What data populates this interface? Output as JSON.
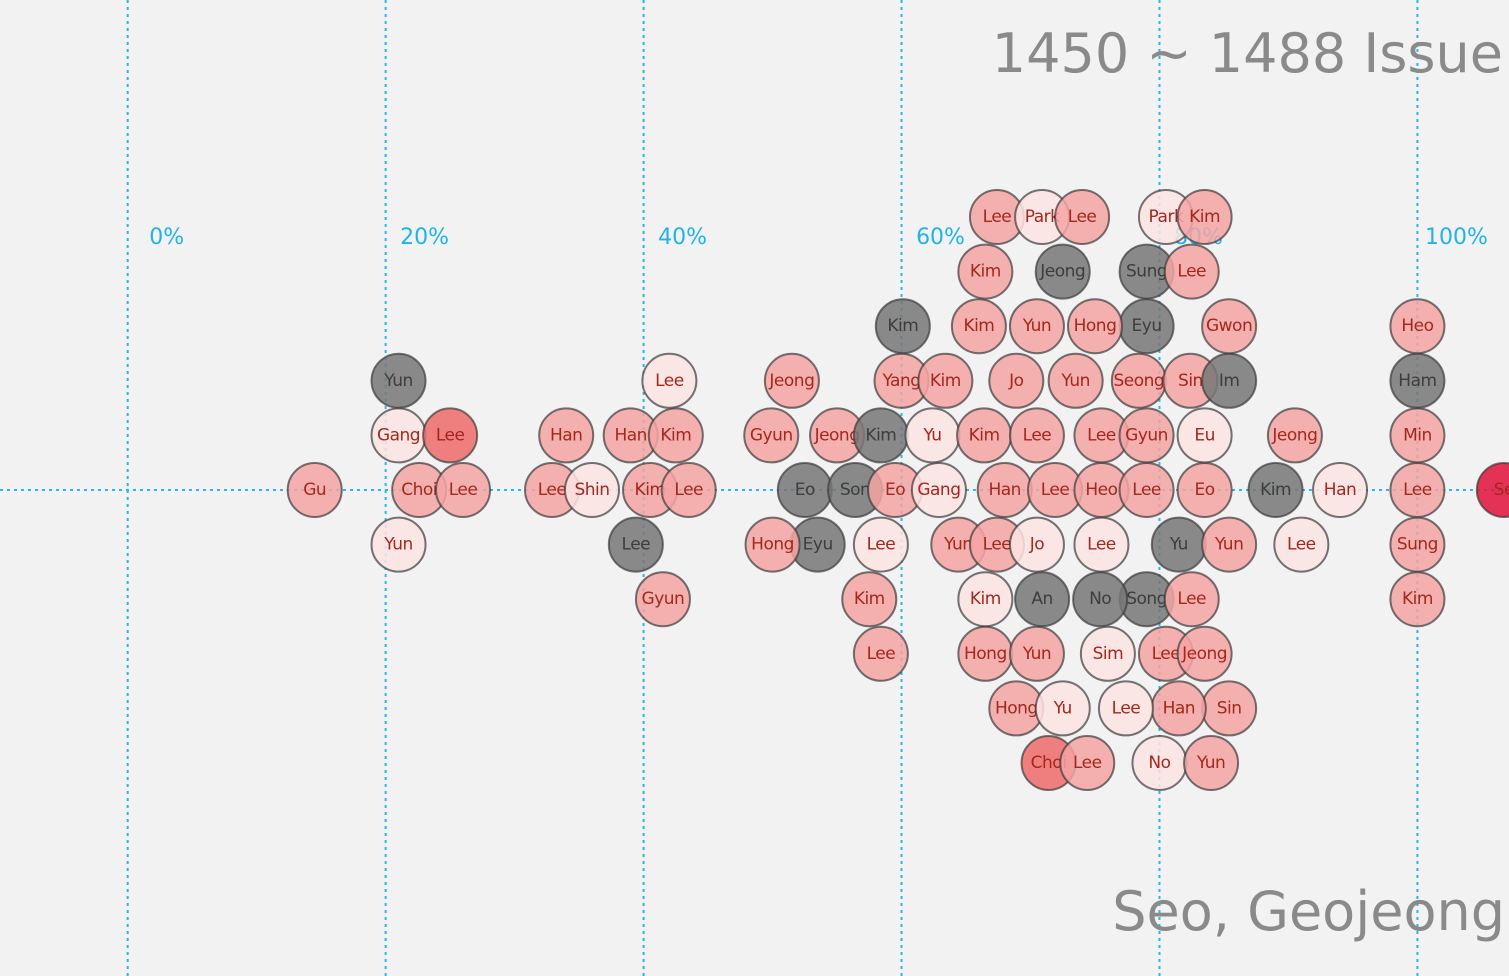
{
  "chart_data": {
    "type": "beeswarm",
    "title": "1450 ~ 1488 Issue",
    "subtitle": "Seo, Geojeong",
    "xlim": [
      -9.9,
      107.1
    ],
    "xticks": [
      {
        "value": 0,
        "label": "0%"
      },
      {
        "value": 20,
        "label": "20%"
      },
      {
        "value": 40,
        "label": "40%"
      },
      {
        "value": 60,
        "label": "60%"
      },
      {
        "value": 80,
        "label": "80%"
      },
      {
        "value": 100,
        "label": "100%"
      }
    ],
    "grid": true,
    "points": [
      {
        "label": "Gu",
        "value": 14.5,
        "color": "#f4a3a3"
      },
      {
        "label": "Choi",
        "value": 22.6,
        "color": "#f4a3a3"
      },
      {
        "label": "Lee",
        "value": 26.0,
        "color": "#f4a3a3"
      },
      {
        "label": "Lee",
        "value": 32.9,
        "color": "#f4a3a3"
      },
      {
        "label": "Shin",
        "value": 36.0,
        "color": "#fde4e4"
      },
      {
        "label": "Kim",
        "value": 40.5,
        "color": "#f4a3a3"
      },
      {
        "label": "Lee",
        "value": 43.5,
        "color": "#f4a3a3"
      },
      {
        "label": "Eo",
        "value": 52.5,
        "color": "#777777"
      },
      {
        "label": "Son",
        "value": 56.4,
        "color": "#777777"
      },
      {
        "label": "Eo",
        "value": 59.5,
        "color": "#f4a3a3"
      },
      {
        "label": "Gang",
        "value": 62.9,
        "color": "#fde4e4"
      },
      {
        "label": "Han",
        "value": 68.0,
        "color": "#f4a3a3"
      },
      {
        "label": "Lee",
        "value": 71.9,
        "color": "#f4a3a3"
      },
      {
        "label": "Heo",
        "value": 75.5,
        "color": "#f4a3a3"
      },
      {
        "label": "Lee",
        "value": 79.0,
        "color": "#f4a3a3"
      },
      {
        "label": "Eo",
        "value": 83.5,
        "color": "#f4a3a3"
      },
      {
        "label": "Kim",
        "value": 89.0,
        "color": "#777777"
      },
      {
        "label": "Han",
        "value": 94.0,
        "color": "#fde4e4"
      },
      {
        "label": "Lee",
        "value": 100,
        "color": "#f4a3a3"
      },
      {
        "label": "Se",
        "value": 106.7,
        "color": "#e0113a"
      },
      {
        "label": "Gang",
        "value": 21.0,
        "color": "#fde4e4"
      },
      {
        "label": "Lee",
        "value": 25.0,
        "color": "#ee6b6b"
      },
      {
        "label": "Han",
        "value": 34.0,
        "color": "#f4a3a3"
      },
      {
        "label": "Han",
        "value": 39.0,
        "color": "#f4a3a3"
      },
      {
        "label": "Jeong",
        "value": 55.0,
        "color": "#f4a3a3"
      },
      {
        "label": "Kim",
        "value": 58.4,
        "color": "#777777"
      },
      {
        "label": "Yu",
        "value": 62.4,
        "color": "#fde4e4"
      },
      {
        "label": "Kim",
        "value": 66.4,
        "color": "#f4a3a3"
      },
      {
        "label": "Lee",
        "value": 70.5,
        "color": "#f4a3a3"
      },
      {
        "label": "Lee",
        "value": 75.5,
        "color": "#f4a3a3"
      },
      {
        "label": "Gyun",
        "value": 79.0,
        "color": "#f4a3a3"
      },
      {
        "label": "Eu",
        "value": 83.5,
        "color": "#fde4e4"
      },
      {
        "label": "Jeong",
        "value": 90.5,
        "color": "#f4a3a3"
      },
      {
        "label": "Min",
        "value": 100,
        "color": "#f4a3a3"
      },
      {
        "label": "Yun",
        "value": 21.0,
        "color": "#fde4e4"
      },
      {
        "label": "Lee",
        "value": 39.4,
        "color": "#777777"
      },
      {
        "label": "Kim",
        "value": 42.5,
        "color": "#f4a3a3"
      },
      {
        "label": "Gyun",
        "value": 49.9,
        "color": "#f4a3a3"
      },
      {
        "label": "Eyu",
        "value": 53.5,
        "color": "#777777"
      },
      {
        "label": "Lee",
        "value": 58.4,
        "color": "#fde4e4"
      },
      {
        "label": "Yun",
        "value": 64.4,
        "color": "#f4a3a3"
      },
      {
        "label": "Lee",
        "value": 67.4,
        "color": "#f4a3a3"
      },
      {
        "label": "Jo",
        "value": 70.5,
        "color": "#fde4e4"
      },
      {
        "label": "Lee",
        "value": 75.5,
        "color": "#fde4e4"
      },
      {
        "label": "Seong",
        "value": 78.4,
        "color": "#f4a3a3"
      },
      {
        "label": "Yu",
        "value": 81.5,
        "color": "#777777"
      },
      {
        "label": "Yun",
        "value": 85.4,
        "color": "#f4a3a3"
      },
      {
        "label": "Lee",
        "value": 91.0,
        "color": "#fde4e4"
      },
      {
        "label": "Sung",
        "value": 100,
        "color": "#f4a3a3"
      },
      {
        "label": "Lee",
        "value": 42.0,
        "color": "#fde4e4"
      },
      {
        "label": "Jeong",
        "value": 51.5,
        "color": "#f4a3a3"
      },
      {
        "label": "Hong",
        "value": 50.0,
        "color": "#f4a3a3"
      },
      {
        "label": "Yang",
        "value": 60.0,
        "color": "#f4a3a3"
      },
      {
        "label": "Kim",
        "value": 63.4,
        "color": "#f4a3a3"
      },
      {
        "label": "Jo",
        "value": 68.9,
        "color": "#f4a3a3"
      },
      {
        "label": "An",
        "value": 70.9,
        "color": "#777777"
      },
      {
        "label": "Yun",
        "value": 73.5,
        "color": "#f4a3a3"
      },
      {
        "label": "Song",
        "value": 79.0,
        "color": "#777777"
      },
      {
        "label": "Sin",
        "value": 82.4,
        "color": "#f4a3a3"
      },
      {
        "label": "Im",
        "value": 85.4,
        "color": "#777777"
      },
      {
        "label": "Ham",
        "value": 100,
        "color": "#777777"
      },
      {
        "label": "Yun",
        "value": 21.0,
        "color": "#777777"
      },
      {
        "label": "Gyun",
        "value": 41.5,
        "color": "#f4a3a3"
      },
      {
        "label": "Kim",
        "value": 57.5,
        "color": "#f4a3a3"
      },
      {
        "label": "Kim",
        "value": 60.1,
        "color": "#777777"
      },
      {
        "label": "Kim",
        "value": 66.5,
        "color": "#fde4e4"
      },
      {
        "label": "Yun",
        "value": 70.5,
        "color": "#f4a3a3"
      },
      {
        "label": "No",
        "value": 75.4,
        "color": "#777777"
      },
      {
        "label": "Eyu",
        "value": 79.0,
        "color": "#777777"
      },
      {
        "label": "Lee",
        "value": 82.5,
        "color": "#f4a3a3"
      },
      {
        "label": "Gwon",
        "value": 85.4,
        "color": "#f4a3a3"
      },
      {
        "label": "Kim",
        "value": 100,
        "color": "#f4a3a3"
      },
      {
        "label": "Kim",
        "value": 66.0,
        "color": "#f4a3a3"
      },
      {
        "label": "Hong",
        "value": 66.5,
        "color": "#f4a3a3"
      },
      {
        "label": "Yun",
        "value": 70.5,
        "color": "#f4a3a3"
      },
      {
        "label": "Hong",
        "value": 75.0,
        "color": "#f4a3a3"
      },
      {
        "label": "Lee",
        "value": 80.5,
        "color": "#f4a3a3"
      },
      {
        "label": "Jeong",
        "value": 83.5,
        "color": "#f4a3a3"
      },
      {
        "label": "Lee",
        "value": 58.4,
        "color": "#f4a3a3"
      },
      {
        "label": "Kim",
        "value": 66.5,
        "color": "#f4a3a3"
      },
      {
        "label": "Hong",
        "value": 68.9,
        "color": "#f4a3a3"
      },
      {
        "label": "Jeong",
        "value": 72.5,
        "color": "#777777"
      },
      {
        "label": "Sim",
        "value": 76.0,
        "color": "#fde4e4"
      },
      {
        "label": "Sung",
        "value": 79.0,
        "color": "#777777"
      },
      {
        "label": "Lee",
        "value": 82.5,
        "color": "#f4a3a3"
      },
      {
        "label": "Sin",
        "value": 85.4,
        "color": "#f4a3a3"
      },
      {
        "label": "Heo",
        "value": 100,
        "color": "#f4a3a3"
      },
      {
        "label": "Yu",
        "value": 72.5,
        "color": "#fde4e4"
      },
      {
        "label": "Han",
        "value": 81.5,
        "color": "#f4a3a3"
      },
      {
        "label": "Lee",
        "value": 67.4,
        "color": "#f4a3a3"
      },
      {
        "label": "Park",
        "value": 70.9,
        "color": "#fde4e4"
      },
      {
        "label": "Lee",
        "value": 74.0,
        "color": "#f4a3a3"
      },
      {
        "label": "Lee",
        "value": 77.4,
        "color": "#fde4e4"
      },
      {
        "label": "Park",
        "value": 80.5,
        "color": "#fde4e4"
      },
      {
        "label": "Kim",
        "value": 83.5,
        "color": "#f4a3a3"
      },
      {
        "label": "Choi",
        "value": 71.4,
        "color": "#ee6b6b"
      },
      {
        "label": "Lee",
        "value": 74.4,
        "color": "#f4a3a3"
      },
      {
        "label": "No",
        "value": 80.0,
        "color": "#fde4e4"
      },
      {
        "label": "Yun",
        "value": 84.0,
        "color": "#f4a3a3"
      }
    ]
  }
}
